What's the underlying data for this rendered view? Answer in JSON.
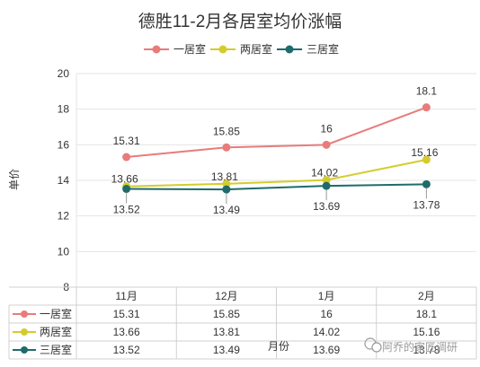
{
  "chart_data": {
    "type": "line",
    "title": "德胜11-2月各居室均价涨幅",
    "ylabel": "单价",
    "xlabel": "月份",
    "categories": [
      "11月",
      "12月",
      "1月",
      "2月"
    ],
    "ylim": [
      8,
      20
    ],
    "yticks": [
      8,
      10,
      12,
      14,
      16,
      18,
      20
    ],
    "grid": true,
    "legend_position": "top",
    "data_table": true,
    "series": [
      {
        "name": "一居室",
        "color": "#e97b7b",
        "values": [
          15.31,
          15.85,
          16,
          18.1
        ],
        "labels": [
          "15.31",
          "15.85",
          "16",
          "18.1"
        ]
      },
      {
        "name": "两居室",
        "color": "#d4cc2c",
        "values": [
          13.66,
          13.81,
          14.02,
          15.16
        ],
        "labels": [
          "13.66",
          "13.81",
          "14.02",
          "15.16"
        ]
      },
      {
        "name": "三居室",
        "color": "#1f6b6b",
        "values": [
          13.52,
          13.49,
          13.69,
          13.78
        ],
        "labels": [
          "13.52",
          "13.49",
          "13.69",
          "13.78"
        ]
      }
    ]
  },
  "watermark": {
    "text": "阿乔的家匠调研",
    "icon": "wechat-icon"
  }
}
